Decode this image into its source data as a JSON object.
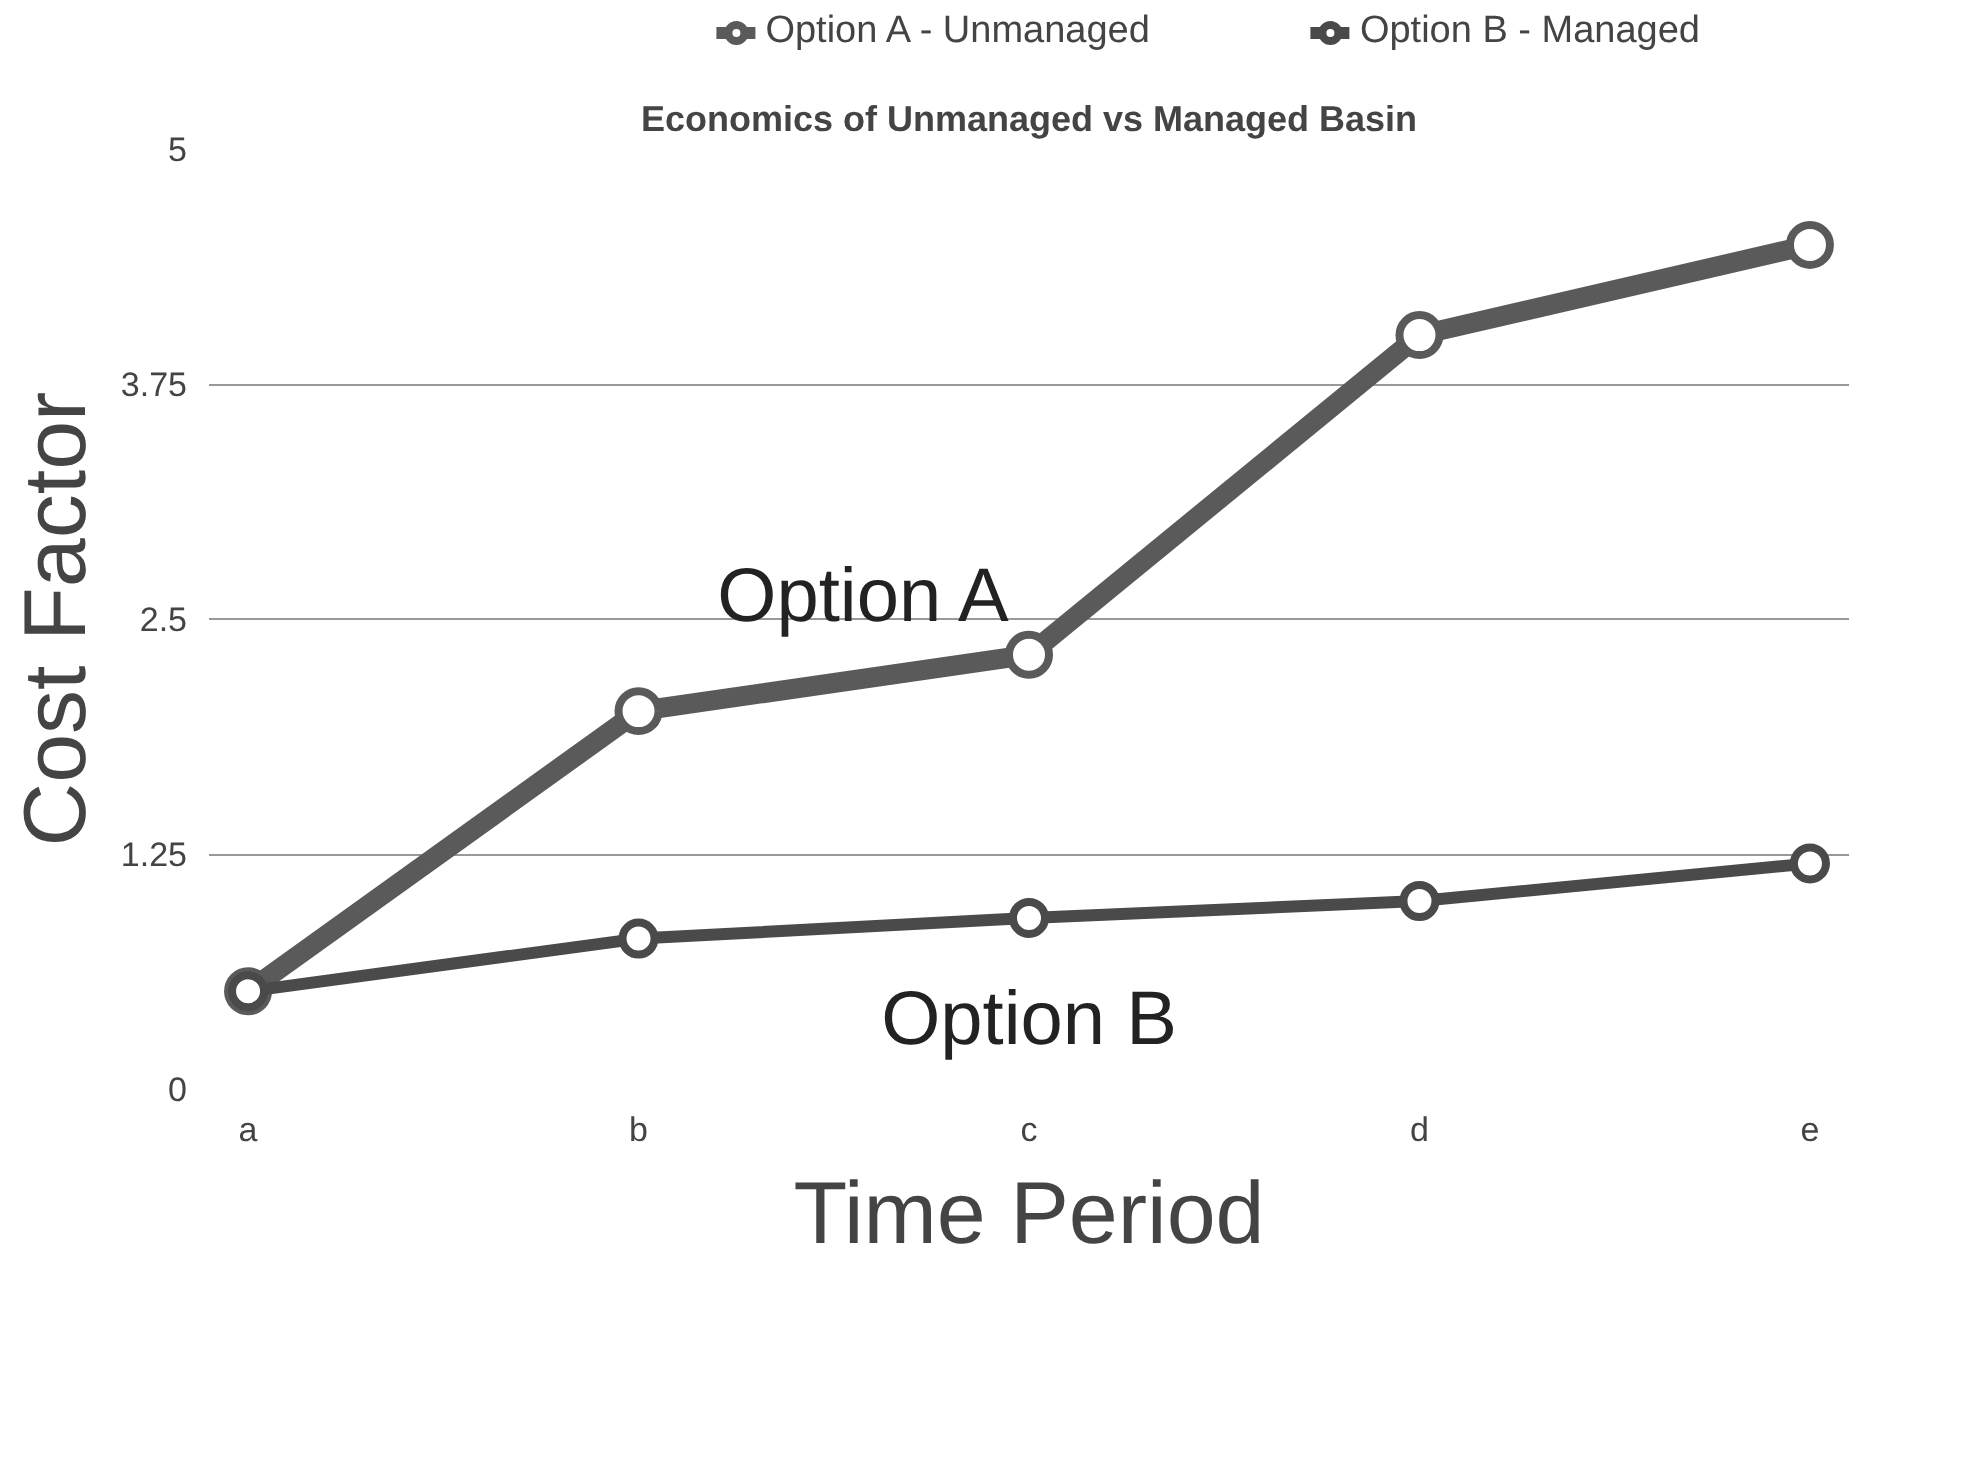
{
  "chart_data": {
    "type": "line",
    "title": "Economics of Unmanaged vs Managed Basin",
    "xlabel": "Time Period",
    "ylabel": "Cost Factor",
    "categories": [
      "a",
      "b",
      "c",
      "d",
      "e"
    ],
    "series": [
      {
        "name": "Option A - Unmanaged",
        "color": "#5a5a5a",
        "values": [
          0.52,
          2.01,
          2.31,
          4.01,
          4.49
        ]
      },
      {
        "name": "Option B - Managed",
        "color": "#4a4a4a",
        "values": [
          0.52,
          0.8,
          0.91,
          1.0,
          1.2
        ]
      }
    ],
    "ylim": [
      0,
      5
    ],
    "yticks": [
      0,
      1.25,
      2.5,
      3.75,
      5
    ],
    "grid": "y",
    "legend": "top",
    "marker": "circle",
    "line_style": "solid",
    "annotations": [
      "Option A",
      "Option B"
    ]
  }
}
